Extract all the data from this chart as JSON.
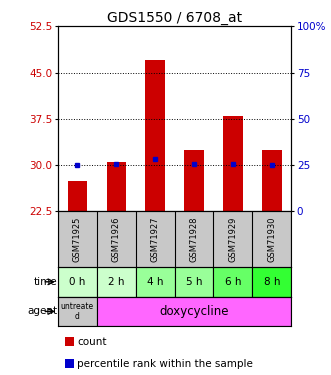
{
  "title": "GDS1550 / 6708_at",
  "samples": [
    "GSM71925",
    "GSM71926",
    "GSM71927",
    "GSM71928",
    "GSM71929",
    "GSM71930"
  ],
  "time_labels": [
    "0 h",
    "2 h",
    "4 h",
    "5 h",
    "6 h",
    "8 h"
  ],
  "time_colors": [
    "#ccffcc",
    "#ccffcc",
    "#99ff99",
    "#99ff99",
    "#66ff66",
    "#33ff33"
  ],
  "agent_labels": [
    "untreated",
    "doxycycline"
  ],
  "count_values": [
    27.5,
    30.5,
    47.0,
    32.5,
    38.0,
    32.5
  ],
  "percentile_values": [
    25.0,
    25.5,
    28.5,
    25.5,
    25.5,
    25.0
  ],
  "ylim_left": [
    22.5,
    52.5
  ],
  "ylim_right": [
    0,
    100
  ],
  "yticks_left": [
    22.5,
    30.0,
    37.5,
    45.0,
    52.5
  ],
  "yticks_right": [
    0,
    25,
    50,
    75,
    100
  ],
  "bar_color": "#cc0000",
  "dot_color": "#0000cc",
  "bg_color": "#ffffff",
  "sample_bg": "#c8c8c8",
  "agent_colors": [
    "#c8c8c8",
    "#ff66ff"
  ],
  "legend_count_label": "count",
  "legend_pct_label": "percentile rank within the sample",
  "left_label_color": "#cc0000",
  "right_label_color": "#0000cc"
}
